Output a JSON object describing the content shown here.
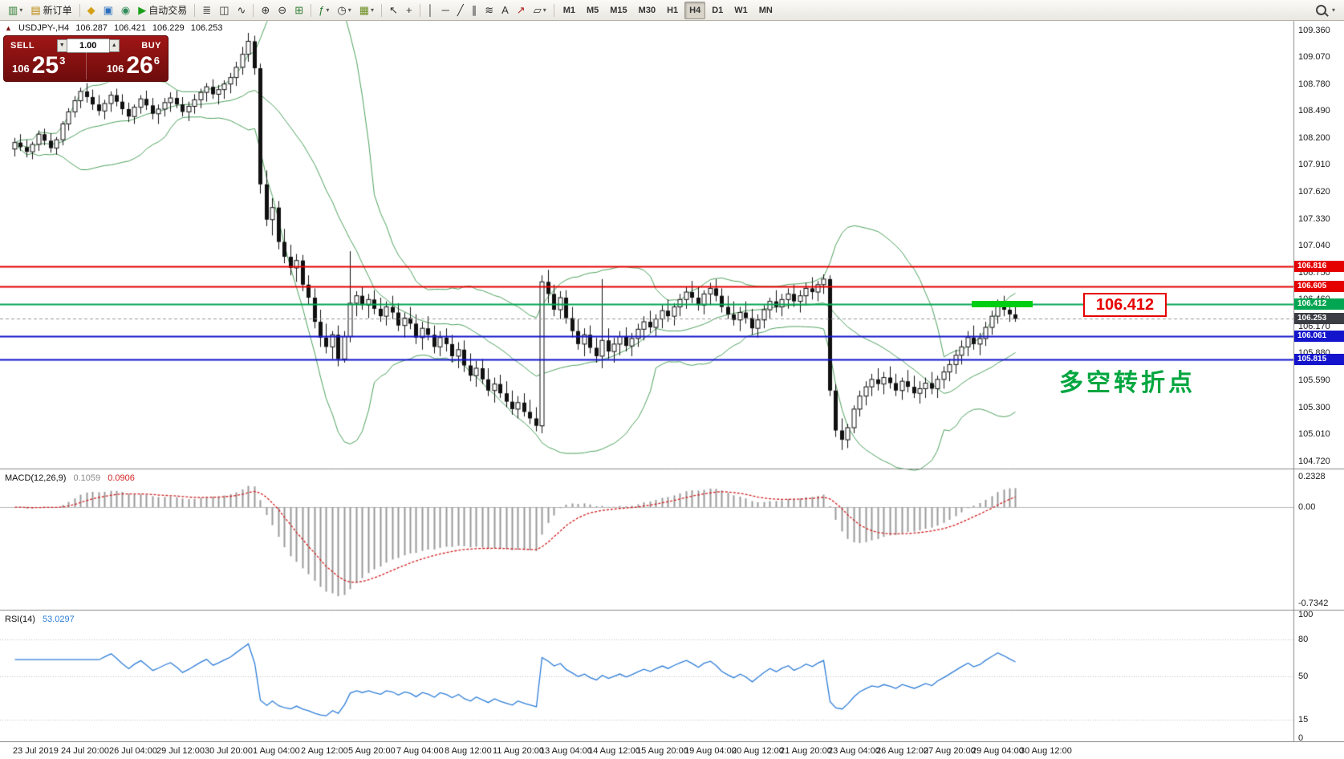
{
  "icons": {
    "one_click_toggle": "▲",
    "spin_up": "▲",
    "spin_down": "▼",
    "dropdown": "▾"
  },
  "toolbar": {
    "groups": [
      {
        "items": [
          {
            "n": "new-chart-icon",
            "g": "▥",
            "c": "#2e7d32",
            "dd": true
          },
          {
            "n": "new-order-button",
            "g": "▤",
            "c": "#b8860b",
            "label": "新订单"
          }
        ]
      },
      {
        "items": [
          {
            "n": "market-watch-icon",
            "g": "◆",
            "c": "#d4a017"
          },
          {
            "n": "data-window-icon",
            "g": "▣",
            "c": "#2a6fbd"
          },
          {
            "n": "strategy-info-icon",
            "g": "◉",
            "c": "#2e8b57"
          },
          {
            "n": "autotrade-button",
            "g": "▶",
            "c": "#18a018",
            "label": "自动交易"
          }
        ]
      },
      {
        "items": [
          {
            "n": "bar-chart-icon",
            "g": "≣",
            "c": "#333333"
          },
          {
            "n": "candlestick-chart-icon",
            "g": "◫",
            "c": "#333333"
          },
          {
            "n": "line-chart-icon",
            "g": "∿",
            "c": "#333333"
          }
        ]
      },
      {
        "items": [
          {
            "n": "zoom-in-icon",
            "g": "⊕",
            "c": "#333333"
          },
          {
            "n": "zoom-out-icon",
            "g": "⊖",
            "c": "#333333"
          },
          {
            "n": "tile-windows-icon",
            "g": "⊞",
            "c": "#2e7d32"
          }
        ]
      },
      {
        "items": [
          {
            "n": "indicators-icon",
            "g": "ƒ",
            "c": "#2e7d32",
            "dd": true
          },
          {
            "n": "periods-icon",
            "g": "◷",
            "c": "#333333",
            "dd": true
          },
          {
            "n": "templates-icon",
            "g": "▦",
            "c": "#6b8e23",
            "dd": true
          }
        ]
      },
      {
        "items": [
          {
            "n": "cursor-icon",
            "g": "↖",
            "c": "#333333"
          },
          {
            "n": "crosshair-icon",
            "g": "+",
            "c": "#333333"
          }
        ]
      },
      {
        "items": [
          {
            "n": "vertical-line-icon",
            "g": "│",
            "c": "#333333"
          },
          {
            "n": "horizontal-line-icon",
            "g": "─",
            "c": "#333333"
          },
          {
            "n": "trendline-icon",
            "g": "╱",
            "c": "#333333"
          },
          {
            "n": "channel-icon",
            "g": "∥",
            "c": "#333333"
          },
          {
            "n": "fibonacci-icon",
            "g": "≋",
            "c": "#333333"
          },
          {
            "n": "text-tool-icon",
            "g": "A",
            "c": "#333333"
          },
          {
            "n": "arrows-tool-icon",
            "g": "↗",
            "c": "#b22222"
          },
          {
            "n": "shapes-icon",
            "g": "▱",
            "c": "#333333",
            "dd": true
          }
        ]
      }
    ],
    "timeframes": [
      "M1",
      "M5",
      "M15",
      "M30",
      "H1",
      "H4",
      "D1",
      "W1",
      "MN"
    ],
    "active_timeframe": "H4"
  },
  "info_line": {
    "symbol": "USDJPY-,H4",
    "open": "106.287",
    "high": "106.421",
    "low": "106.229",
    "close": "106.253"
  },
  "one_click": {
    "sell_label": "SELL",
    "buy_label": "BUY",
    "lot": "1.00",
    "sell_price_int": "106",
    "sell_price_pips": "25",
    "sell_price_sup": "3",
    "buy_price_int": "106",
    "buy_price_pips": "26",
    "buy_price_sup": "6"
  },
  "annotations": {
    "price_box_text": "106.412",
    "turning_point_text": "多空转折点"
  },
  "chart_data": {
    "type": "candlestick",
    "symbol": "USDJPY-",
    "timeframe": "H4",
    "price_axis": {
      "labels_max": 109.36,
      "labels_min": 104.71,
      "step": 0.29,
      "view_max": 109.46,
      "view_min": 104.64,
      "decimals": 3
    },
    "hlines": [
      {
        "value": 106.816,
        "color": "#e50000",
        "width": 2,
        "name": "resistance-line-1"
      },
      {
        "value": 106.605,
        "color": "#e50000",
        "width": 2,
        "name": "resistance-line-2"
      },
      {
        "value": 106.412,
        "color": "#00a651",
        "width": 2,
        "name": "pivot-line"
      },
      {
        "value": 106.061,
        "color": "#1414cc",
        "width": 2,
        "name": "support-line-1"
      },
      {
        "value": 105.815,
        "color": "#1414cc",
        "width": 2,
        "name": "support-line-2"
      }
    ],
    "bid": {
      "value": 106.253,
      "tag_color": "#3c3c44"
    },
    "time_labels": [
      "23 Jul 2019",
      "24 Jul 20:00",
      "26 Jul 04:00",
      "29 Jul 12:00",
      "30 Jul 20:00",
      "1 Aug 04:00",
      "2 Aug 12:00",
      "5 Aug 20:00",
      "7 Aug 04:00",
      "8 Aug 12:00",
      "11 Aug 20:00",
      "13 Aug 04:00",
      "14 Aug 12:00",
      "15 Aug 20:00",
      "19 Aug 04:00",
      "20 Aug 12:00",
      "21 Aug 20:00",
      "23 Aug 04:00",
      "26 Aug 12:00",
      "27 Aug 20:00",
      "29 Aug 04:00",
      "30 Aug 12:00"
    ],
    "label_bar_step": 8,
    "indicators": {
      "bollinger": {
        "period": 20,
        "deviation": 2,
        "color": "#4ea25e"
      },
      "macd": {
        "label": "MACD(12,26,9)",
        "value_main": "0.1059",
        "value_signal": "0.0906",
        "fast": 12,
        "slow": 26,
        "signal": 9,
        "scale_top": "0.2328",
        "scale_zero": "0.00",
        "scale_bottom": "-0.7342",
        "hist_color": "#9a9a9a",
        "signal_color": "#d22020"
      },
      "rsi": {
        "label": "RSI(14)",
        "period": 14,
        "value": "53.0297",
        "levels": [
          80,
          50,
          15
        ],
        "scale_values": [
          100,
          80,
          50,
          15,
          0
        ],
        "color": "#2f7ed8"
      }
    },
    "candles": [
      [
        108.08,
        108.2,
        108.0,
        108.15
      ],
      [
        108.15,
        108.24,
        108.06,
        108.1
      ],
      [
        108.1,
        108.18,
        107.99,
        108.05
      ],
      [
        108.05,
        108.16,
        107.97,
        108.13
      ],
      [
        108.13,
        108.28,
        108.06,
        108.24
      ],
      [
        108.24,
        108.3,
        108.12,
        108.17
      ],
      [
        108.17,
        108.25,
        108.04,
        108.09
      ],
      [
        108.09,
        108.21,
        108.02,
        108.18
      ],
      [
        108.18,
        108.38,
        108.12,
        108.35
      ],
      [
        108.35,
        108.52,
        108.28,
        108.48
      ],
      [
        108.48,
        108.65,
        108.42,
        108.6
      ],
      [
        108.6,
        108.74,
        108.52,
        108.7
      ],
      [
        108.7,
        108.79,
        108.58,
        108.64
      ],
      [
        108.64,
        108.72,
        108.5,
        108.56
      ],
      [
        108.56,
        108.66,
        108.44,
        108.49
      ],
      [
        108.49,
        108.61,
        108.4,
        108.57
      ],
      [
        108.57,
        108.7,
        108.48,
        108.66
      ],
      [
        108.66,
        108.73,
        108.54,
        108.59
      ],
      [
        108.59,
        108.67,
        108.45,
        108.51
      ],
      [
        108.51,
        108.58,
        108.37,
        108.43
      ],
      [
        108.43,
        108.56,
        108.35,
        108.53
      ],
      [
        108.53,
        108.66,
        108.46,
        108.62
      ],
      [
        108.62,
        108.71,
        108.5,
        108.55
      ],
      [
        108.55,
        108.63,
        108.4,
        108.46
      ],
      [
        108.46,
        108.56,
        108.35,
        108.51
      ],
      [
        108.51,
        108.63,
        108.43,
        108.58
      ],
      [
        108.58,
        108.69,
        108.48,
        108.63
      ],
      [
        108.63,
        108.71,
        108.52,
        108.56
      ],
      [
        108.56,
        108.64,
        108.43,
        108.48
      ],
      [
        108.48,
        108.59,
        108.38,
        108.54
      ],
      [
        108.54,
        108.67,
        108.46,
        108.61
      ],
      [
        108.61,
        108.73,
        108.52,
        108.69
      ],
      [
        108.69,
        108.79,
        108.59,
        108.75
      ],
      [
        108.75,
        108.83,
        108.62,
        108.67
      ],
      [
        108.67,
        108.77,
        108.56,
        108.72
      ],
      [
        108.72,
        108.82,
        108.62,
        108.78
      ],
      [
        108.78,
        108.9,
        108.68,
        108.85
      ],
      [
        108.85,
        109.02,
        108.76,
        108.96
      ],
      [
        108.96,
        109.18,
        108.88,
        109.1
      ],
      [
        109.1,
        109.33,
        109.02,
        109.24
      ],
      [
        109.24,
        109.3,
        108.88,
        108.95
      ],
      [
        108.95,
        109.0,
        107.6,
        107.7
      ],
      [
        107.7,
        107.85,
        107.25,
        107.32
      ],
      [
        107.32,
        107.55,
        107.15,
        107.45
      ],
      [
        107.45,
        107.52,
        107.0,
        107.08
      ],
      [
        107.08,
        107.22,
        106.85,
        106.92
      ],
      [
        106.92,
        107.05,
        106.72,
        106.8
      ],
      [
        106.8,
        106.95,
        106.65,
        106.88
      ],
      [
        106.88,
        106.94,
        106.55,
        106.62
      ],
      [
        106.62,
        106.72,
        106.4,
        106.48
      ],
      [
        106.48,
        106.58,
        106.15,
        106.22
      ],
      [
        106.22,
        106.35,
        105.95,
        106.05
      ],
      [
        106.05,
        106.2,
        105.88,
        105.95
      ],
      [
        105.95,
        106.12,
        105.82,
        106.08
      ],
      [
        106.08,
        106.18,
        105.74,
        105.82
      ],
      [
        105.82,
        106.12,
        105.78,
        106.06
      ],
      [
        106.06,
        106.98,
        106.0,
        106.42
      ],
      [
        106.42,
        106.55,
        106.28,
        106.5
      ],
      [
        106.5,
        106.6,
        106.35,
        106.4
      ],
      [
        106.4,
        106.52,
        106.26,
        106.46
      ],
      [
        106.46,
        106.56,
        106.3,
        106.36
      ],
      [
        106.36,
        106.48,
        106.22,
        106.28
      ],
      [
        106.28,
        106.44,
        106.18,
        106.38
      ],
      [
        106.38,
        106.5,
        106.25,
        106.32
      ],
      [
        106.32,
        106.42,
        106.12,
        106.18
      ],
      [
        106.18,
        106.32,
        106.05,
        106.26
      ],
      [
        106.26,
        106.38,
        106.14,
        106.2
      ],
      [
        106.2,
        106.3,
        105.98,
        106.05
      ],
      [
        106.05,
        106.22,
        105.92,
        106.15
      ],
      [
        106.15,
        106.28,
        106.02,
        106.08
      ],
      [
        106.08,
        106.18,
        105.88,
        105.95
      ],
      [
        105.95,
        106.12,
        105.85,
        106.05
      ],
      [
        106.05,
        106.15,
        105.9,
        105.98
      ],
      [
        105.98,
        106.08,
        105.78,
        105.85
      ],
      [
        105.85,
        106.0,
        105.72,
        105.92
      ],
      [
        105.92,
        106.02,
        105.68,
        105.75
      ],
      [
        105.75,
        105.88,
        105.58,
        105.64
      ],
      [
        105.64,
        105.8,
        105.52,
        105.72
      ],
      [
        105.72,
        105.82,
        105.55,
        105.6
      ],
      [
        105.6,
        105.72,
        105.42,
        105.48
      ],
      [
        105.48,
        105.62,
        105.35,
        105.55
      ],
      [
        105.55,
        105.65,
        105.4,
        105.45
      ],
      [
        105.45,
        105.58,
        105.3,
        105.36
      ],
      [
        105.36,
        105.48,
        105.22,
        105.28
      ],
      [
        105.28,
        105.42,
        105.18,
        105.35
      ],
      [
        105.35,
        105.45,
        105.2,
        105.25
      ],
      [
        105.25,
        105.38,
        105.12,
        105.18
      ],
      [
        105.18,
        105.3,
        105.04,
        105.1
      ],
      [
        105.1,
        106.72,
        105.02,
        106.65
      ],
      [
        106.65,
        106.78,
        106.42,
        106.52
      ],
      [
        106.52,
        106.62,
        106.28,
        106.35
      ],
      [
        106.35,
        106.55,
        106.25,
        106.48
      ],
      [
        106.48,
        106.56,
        106.2,
        106.26
      ],
      [
        106.26,
        106.38,
        106.05,
        106.12
      ],
      [
        106.12,
        106.25,
        105.92,
        105.98
      ],
      [
        105.98,
        106.15,
        105.85,
        106.08
      ],
      [
        106.08,
        106.18,
        105.88,
        105.94
      ],
      [
        105.94,
        106.05,
        105.78,
        105.85
      ],
      [
        105.85,
        106.68,
        105.72,
        106.02
      ],
      [
        106.02,
        106.15,
        105.82,
        105.9
      ],
      [
        105.9,
        106.05,
        105.78,
        105.98
      ],
      [
        105.98,
        106.12,
        105.86,
        106.06
      ],
      [
        106.06,
        106.16,
        105.9,
        105.96
      ],
      [
        105.96,
        106.1,
        105.85,
        106.04
      ],
      [
        106.04,
        106.2,
        105.95,
        106.14
      ],
      [
        106.14,
        106.28,
        106.02,
        106.22
      ],
      [
        106.22,
        106.34,
        106.1,
        106.16
      ],
      [
        106.16,
        106.3,
        106.06,
        106.25
      ],
      [
        106.25,
        106.4,
        106.15,
        106.34
      ],
      [
        106.34,
        106.46,
        106.22,
        106.28
      ],
      [
        106.28,
        106.42,
        106.18,
        106.38
      ],
      [
        106.38,
        106.52,
        106.28,
        106.46
      ],
      [
        106.46,
        106.6,
        106.36,
        106.54
      ],
      [
        106.54,
        106.66,
        106.42,
        106.48
      ],
      [
        106.48,
        106.6,
        106.34,
        106.4
      ],
      [
        106.4,
        106.56,
        106.3,
        106.52
      ],
      [
        106.52,
        106.64,
        106.4,
        106.58
      ],
      [
        106.58,
        106.68,
        106.44,
        106.5
      ],
      [
        106.5,
        106.58,
        106.32,
        106.38
      ],
      [
        106.38,
        106.5,
        106.25,
        106.3
      ],
      [
        106.3,
        106.44,
        106.18,
        106.24
      ],
      [
        106.24,
        106.38,
        106.12,
        106.32
      ],
      [
        106.32,
        106.44,
        106.2,
        106.26
      ],
      [
        106.26,
        106.36,
        106.08,
        106.15
      ],
      [
        106.15,
        106.3,
        106.05,
        106.24
      ],
      [
        106.24,
        106.4,
        106.15,
        106.35
      ],
      [
        106.35,
        106.48,
        106.25,
        106.44
      ],
      [
        106.44,
        106.56,
        106.32,
        106.38
      ],
      [
        106.38,
        106.52,
        106.28,
        106.46
      ],
      [
        106.46,
        106.58,
        106.36,
        106.52
      ],
      [
        106.52,
        106.62,
        106.38,
        106.44
      ],
      [
        106.44,
        106.56,
        106.32,
        106.5
      ],
      [
        106.5,
        106.64,
        106.4,
        106.58
      ],
      [
        106.58,
        106.7,
        106.46,
        106.54
      ],
      [
        106.54,
        106.66,
        106.44,
        106.62
      ],
      [
        106.62,
        106.73,
        106.52,
        106.68
      ],
      [
        106.68,
        106.72,
        105.42,
        105.48
      ],
      [
        105.48,
        105.55,
        104.98,
        105.05
      ],
      [
        105.05,
        105.18,
        104.84,
        104.95
      ],
      [
        104.95,
        105.12,
        104.86,
        105.08
      ],
      [
        105.08,
        105.32,
        105.02,
        105.28
      ],
      [
        105.28,
        105.48,
        105.2,
        105.42
      ],
      [
        105.42,
        105.58,
        105.32,
        105.52
      ],
      [
        105.52,
        105.66,
        105.42,
        105.6
      ],
      [
        105.6,
        105.72,
        105.48,
        105.55
      ],
      [
        105.55,
        105.68,
        105.44,
        105.62
      ],
      [
        105.62,
        105.74,
        105.5,
        105.56
      ],
      [
        105.56,
        105.66,
        105.42,
        105.48
      ],
      [
        105.48,
        105.62,
        105.38,
        105.58
      ],
      [
        105.58,
        105.7,
        105.46,
        105.52
      ],
      [
        105.52,
        105.64,
        105.4,
        105.45
      ],
      [
        105.45,
        105.58,
        105.34,
        105.5
      ],
      [
        105.5,
        105.62,
        105.4,
        105.56
      ],
      [
        105.56,
        105.68,
        105.44,
        105.5
      ],
      [
        105.5,
        105.64,
        105.4,
        105.6
      ],
      [
        105.6,
        105.74,
        105.5,
        105.68
      ],
      [
        105.68,
        105.82,
        105.58,
        105.76
      ],
      [
        105.76,
        105.92,
        105.66,
        105.86
      ],
      [
        105.86,
        106.02,
        105.76,
        105.95
      ],
      [
        105.95,
        106.12,
        105.85,
        106.05
      ],
      [
        106.05,
        106.18,
        105.92,
        105.98
      ],
      [
        105.98,
        106.1,
        105.86,
        106.04
      ],
      [
        106.04,
        106.22,
        105.96,
        106.16
      ],
      [
        106.16,
        106.34,
        106.08,
        106.28
      ],
      [
        106.28,
        106.46,
        106.2,
        106.4
      ],
      [
        106.4,
        106.5,
        106.28,
        106.35
      ],
      [
        106.35,
        106.44,
        106.22,
        106.3
      ],
      [
        106.3,
        106.4,
        106.22,
        106.253
      ]
    ]
  }
}
